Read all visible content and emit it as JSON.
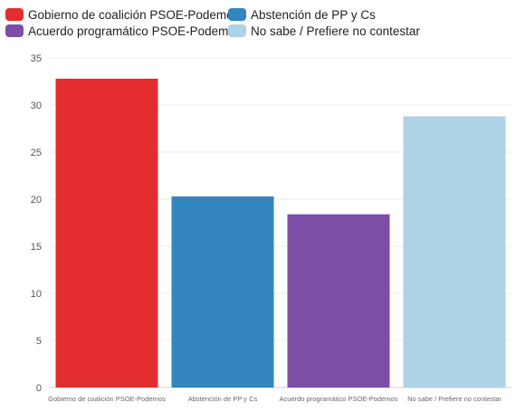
{
  "chart_data": {
    "type": "bar",
    "categories": [
      "Gobierno de coalición PSOE-Podemos",
      "Abstención de PP y Cs",
      "Acuerdo programático PSOE-Podemos",
      "No sabe / Prefiere no contestar"
    ],
    "values": [
      32.8,
      20.3,
      18.4,
      28.8
    ],
    "colors": [
      "#e32d2f",
      "#3385bf",
      "#7b4fa6",
      "#aed2e6"
    ],
    "legend": [
      {
        "label": "Gobierno de coalición PSOE-Podemos",
        "color": "#e32d2f"
      },
      {
        "label": "Abstención de PP y Cs",
        "color": "#3385bf"
      },
      {
        "label": "Acuerdo programático PSOE-Podemos",
        "color": "#7b4fa6"
      },
      {
        "label": "No sabe / Prefiere no contestar",
        "color": "#aed2e6"
      }
    ],
    "legend_position": "top",
    "yticks": [
      0,
      5,
      10,
      15,
      20,
      25,
      30,
      35
    ],
    "ylim": [
      0,
      35
    ],
    "grid": true,
    "title": "",
    "xlabel": "",
    "ylabel": ""
  }
}
